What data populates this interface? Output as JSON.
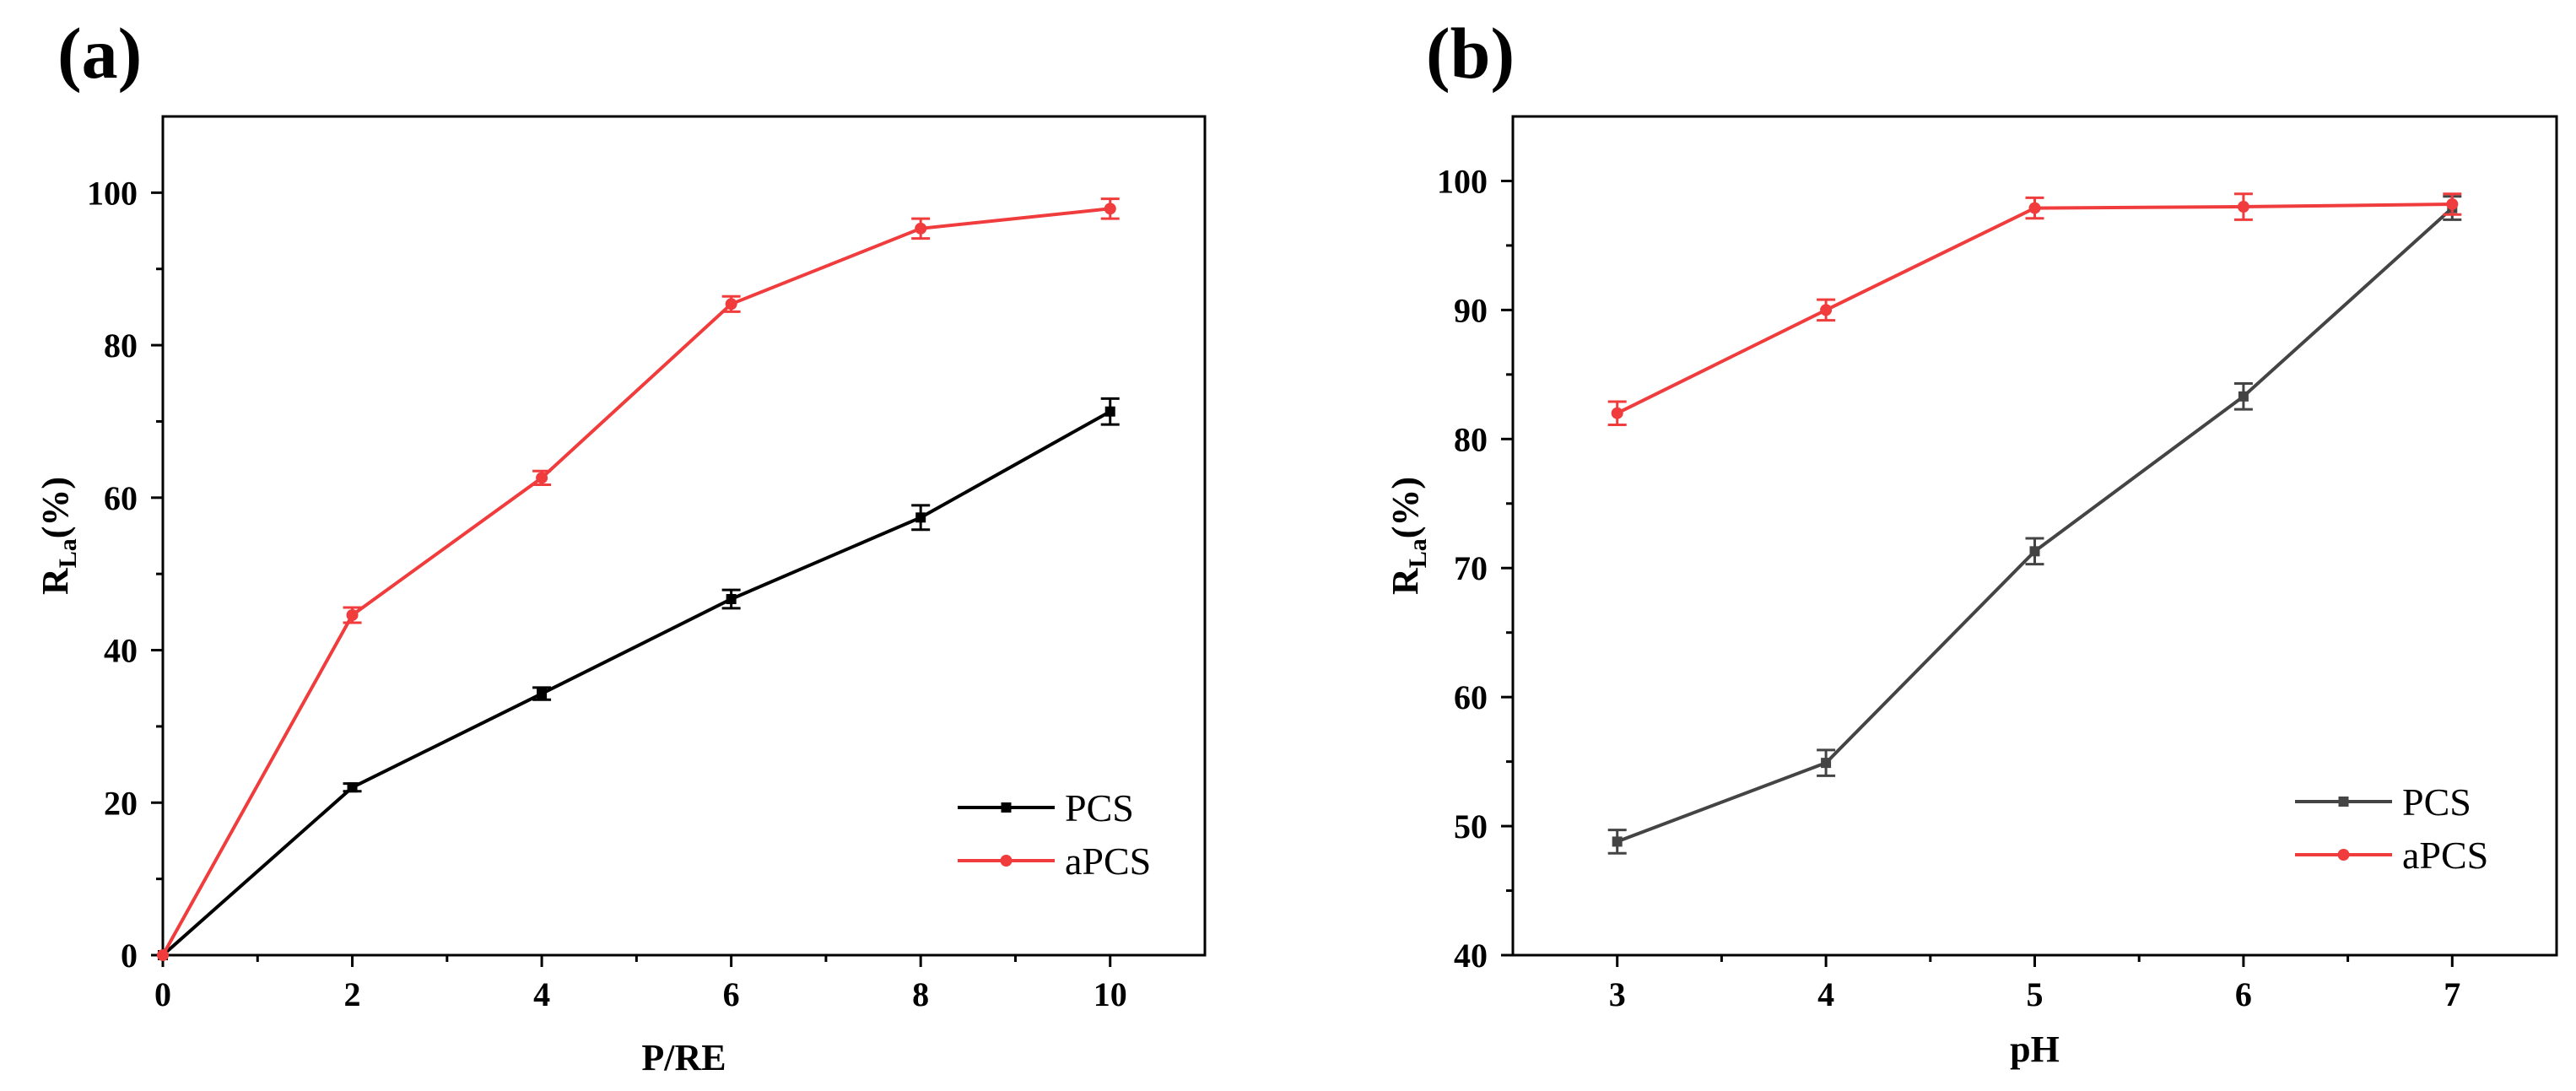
{
  "chart_data": [
    {
      "type": "line",
      "panel_label": "(a)",
      "title": "",
      "xlabel": "P/RE",
      "ylabel": {
        "main": "R",
        "subscript": "La",
        "suffix": "(%)"
      },
      "xlim": [
        0,
        11
      ],
      "ylim": [
        0,
        110
      ],
      "xticks": [
        0,
        2,
        4,
        6,
        8,
        10
      ],
      "yticks": [
        0,
        20,
        40,
        60,
        80,
        100
      ],
      "x": [
        0,
        2,
        4,
        6,
        8,
        10
      ],
      "grid": false,
      "legend_position": "bottom-right",
      "series": [
        {
          "name": "PCS",
          "color": "#000000",
          "marker": "square",
          "values": [
            0,
            22.0,
            34.3,
            46.7,
            57.4,
            71.3
          ],
          "errors": [
            0,
            0.5,
            0.8,
            1.2,
            1.6,
            1.7
          ]
        },
        {
          "name": "aPCS",
          "color": "#f03c3c",
          "marker": "circle",
          "values": [
            0,
            44.6,
            62.6,
            85.4,
            95.3,
            97.9
          ],
          "errors": [
            0,
            1.0,
            0.9,
            1.0,
            1.3,
            1.3
          ]
        }
      ]
    },
    {
      "type": "line",
      "panel_label": "(b)",
      "title": "",
      "xlabel": "pH",
      "ylabel": {
        "main": "R",
        "subscript": "La",
        "suffix": "(%)"
      },
      "xlim": [
        2.5,
        7.5
      ],
      "ylim": [
        40,
        105
      ],
      "xticks": [
        3,
        4,
        5,
        6,
        7
      ],
      "yticks": [
        40,
        50,
        60,
        70,
        80,
        90,
        100
      ],
      "x": [
        3,
        4,
        5,
        6,
        7
      ],
      "grid": false,
      "legend_position": "bottom-right",
      "series": [
        {
          "name": "PCS",
          "color": "#444444",
          "marker": "square",
          "values": [
            48.8,
            54.9,
            71.3,
            83.3,
            97.9
          ],
          "errors": [
            0.9,
            1.0,
            1.0,
            1.0,
            0.9
          ]
        },
        {
          "name": "aPCS",
          "color": "#f03c3c",
          "marker": "circle",
          "values": [
            82.0,
            90.0,
            97.9,
            98.0,
            98.2
          ],
          "errors": [
            0.9,
            0.8,
            0.8,
            1.0,
            0.8
          ]
        }
      ]
    }
  ]
}
